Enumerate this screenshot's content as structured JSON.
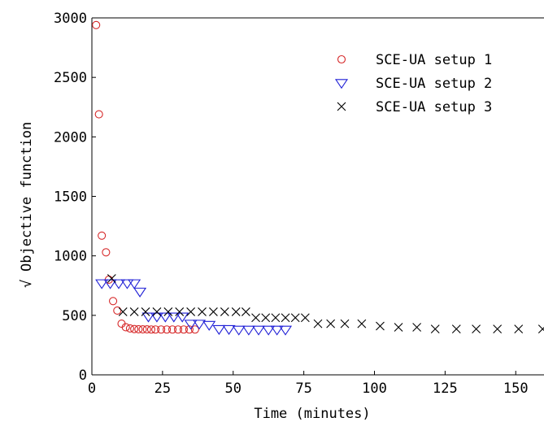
{
  "chart_data": {
    "type": "scatter",
    "title": "",
    "xlabel": "Time (minutes)",
    "ylabel": "Objective function",
    "ylabel_prefix": "√",
    "xlim": [
      0,
      160
    ],
    "ylim": [
      0,
      3000
    ],
    "xticks": [
      0,
      25,
      50,
      75,
      100,
      125,
      150
    ],
    "yticks": [
      0,
      500,
      1000,
      1500,
      2000,
      2500,
      3000
    ],
    "grid": false,
    "legend_position": "top-right",
    "series": [
      {
        "name": "SCE-UA setup 1",
        "marker": "circle",
        "color": "#d62728",
        "x": [
          1.5,
          2.5,
          3.5,
          5,
          6,
          7.5,
          9,
          10.5,
          12,
          13.5,
          15,
          16.5,
          18,
          19.5,
          21,
          22.5,
          24.5,
          26.5,
          28.5,
          30.5,
          32.5,
          34.5,
          36.5
        ],
        "y": [
          2940,
          2190,
          1170,
          1030,
          800,
          620,
          540,
          430,
          400,
          390,
          385,
          383,
          382,
          382,
          381,
          381,
          381,
          381,
          381,
          381,
          381,
          381,
          381
        ]
      },
      {
        "name": "SCE-UA setup 2",
        "marker": "triangle-down",
        "color": "#1f1fd6",
        "x": [
          3.5,
          6.5,
          9.5,
          12.5,
          15,
          17,
          20,
          23,
          26,
          29,
          32,
          35,
          38,
          41.5,
          45,
          48.5,
          52,
          55.5,
          59,
          62.5,
          65.5,
          68.5
        ],
        "y": [
          770,
          770,
          770,
          770,
          770,
          700,
          490,
          490,
          490,
          490,
          490,
          430,
          430,
          420,
          385,
          385,
          380,
          380,
          380,
          380,
          380,
          380
        ]
      },
      {
        "name": "SCE-UA setup 3",
        "marker": "cross",
        "color": "#000000",
        "x": [
          7,
          11,
          15,
          19,
          23,
          27,
          31,
          35,
          39,
          43,
          47,
          51,
          54.5,
          58,
          61.5,
          65,
          68.5,
          72,
          75.5,
          80,
          84.5,
          89.5,
          95.5,
          102,
          108.5,
          115,
          121.5,
          129,
          136,
          143.5,
          151,
          159.5
        ],
        "y": [
          810,
          530,
          530,
          530,
          530,
          530,
          530,
          530,
          530,
          530,
          530,
          530,
          530,
          480,
          480,
          480,
          480,
          480,
          480,
          430,
          430,
          430,
          430,
          410,
          400,
          400,
          385,
          385,
          385,
          385,
          385,
          385
        ]
      }
    ]
  }
}
